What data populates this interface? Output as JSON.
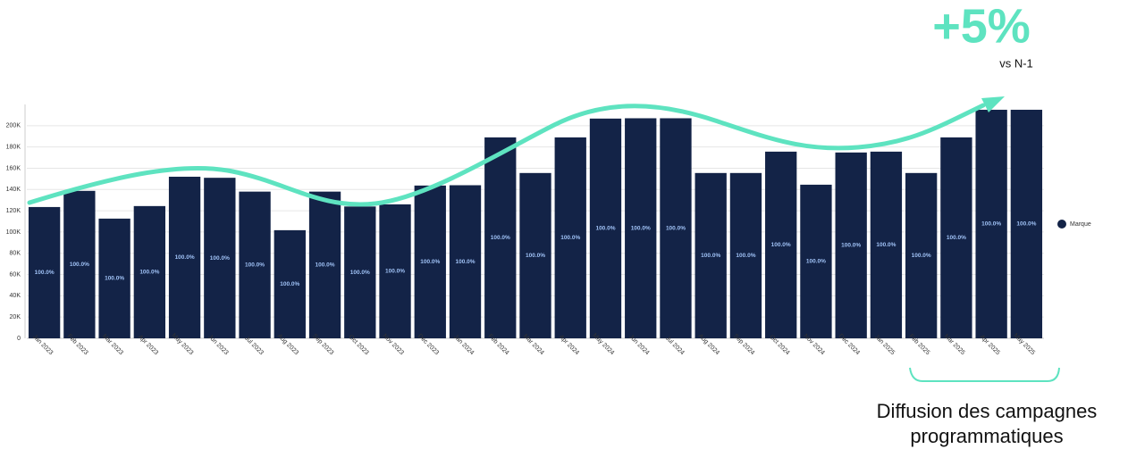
{
  "chart_data": {
    "type": "bar",
    "categories": [
      "Jan 2023",
      "Feb 2023",
      "Mar 2023",
      "Apr 2023",
      "May 2023",
      "Jun 2023",
      "Jul 2023",
      "Aug 2023",
      "Sep 2023",
      "Oct 2023",
      "Nov 2023",
      "Dec 2023",
      "Jan 2024",
      "Feb 2024",
      "Mar 2024",
      "Apr 2024",
      "May 2024",
      "Jun 2024",
      "Jul 2024",
      "Aug 2024",
      "Sep 2024",
      "Oct 2024",
      "Nov 2024",
      "Dec 2024",
      "Jan 2025",
      "Feb 2025",
      "Mar 2025",
      "Apr 2025",
      "May 2025"
    ],
    "series": [
      {
        "name": "Marque",
        "color": "#132347",
        "values": [
          123500,
          138700,
          112600,
          124400,
          152000,
          151000,
          138000,
          101700,
          138000,
          124000,
          126000,
          143700,
          144000,
          189000,
          155500,
          189000,
          206700,
          207000,
          207000,
          155500,
          155500,
          175600,
          144500,
          174800,
          175600,
          155500,
          189000,
          215000,
          215000
        ],
        "share_labels": [
          "100.0%",
          "100.0%",
          "100.0%",
          "100.0%",
          "100.0%",
          "100.0%",
          "100.0%",
          "100.0%",
          "100.0%",
          "100.0%",
          "100.0%",
          "100.0%",
          "100.0%",
          "100.0%",
          "100.0%",
          "100.0%",
          "100.0%",
          "100.0%",
          "100.0%",
          "100.0%",
          "100.0%",
          "100.0%",
          "100.0%",
          "100.0%",
          "100.0%",
          "100.0%",
          "100.0%",
          "100.0%",
          "100.0%"
        ]
      }
    ],
    "ylim": [
      0,
      220000
    ],
    "yticks": [
      0,
      {
        "value": 20000,
        "label": "20K"
      },
      {
        "value": 40000,
        "label": "40K"
      },
      {
        "value": 60000,
        "label": "60K"
      },
      {
        "value": 80000,
        "label": "80K"
      },
      {
        "value": 100000,
        "label": "100K"
      },
      {
        "value": 120000,
        "label": "120K"
      },
      {
        "value": 140000,
        "label": "140K"
      },
      {
        "value": 160000,
        "label": "160K"
      },
      {
        "value": 180000,
        "label": "180K"
      },
      {
        "value": 200000,
        "label": "200K"
      }
    ],
    "grid": true,
    "legend": "right",
    "annotations": {
      "headline": "+5%",
      "headline_sub": "vs N-1",
      "bracket_line1": "Diffusion des campagnes",
      "bracket_line2": "programmatiques"
    }
  }
}
